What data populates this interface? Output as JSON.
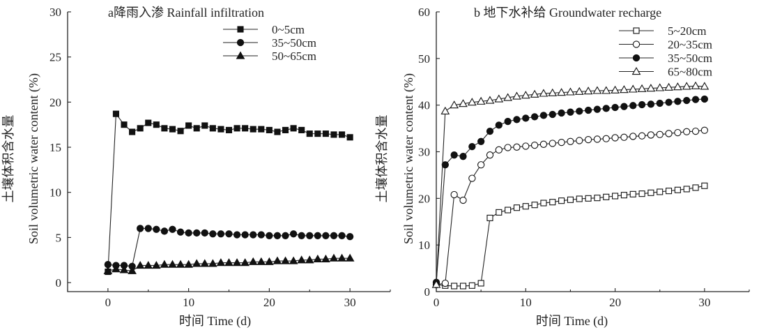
{
  "chart_data": [
    {
      "type": "line",
      "title": "a降雨入渗 Rainfall infiltration",
      "xlabel": "时间  Time (d)",
      "ylabel_cn": "土壤体积含水量",
      "ylabel": "Soil volumetric water content (%)",
      "xlim": [
        -5,
        35
      ],
      "ylim": [
        -1,
        30
      ],
      "xticks": [
        0,
        10,
        20,
        30
      ],
      "yticks": [
        0,
        5,
        10,
        15,
        20,
        25,
        30
      ],
      "legend_position": "top-right",
      "series": [
        {
          "name": "0~5cm",
          "marker": "square-filled",
          "x": [
            0,
            1,
            2,
            3,
            4,
            5,
            6,
            7,
            8,
            9,
            10,
            11,
            12,
            13,
            14,
            15,
            16,
            17,
            18,
            19,
            20,
            21,
            22,
            23,
            24,
            25,
            26,
            27,
            28,
            29,
            30
          ],
          "y": [
            1.2,
            18.7,
            17.5,
            16.7,
            17.1,
            17.7,
            17.5,
            17.1,
            17.0,
            16.8,
            17.4,
            17.1,
            17.4,
            17.1,
            17.0,
            16.9,
            17.1,
            17.1,
            17.0,
            17.0,
            16.9,
            16.7,
            16.9,
            17.1,
            16.9,
            16.5,
            16.5,
            16.5,
            16.4,
            16.4,
            16.1
          ]
        },
        {
          "name": "35~50cm",
          "marker": "circle-filled",
          "x": [
            0,
            1,
            2,
            3,
            4,
            5,
            6,
            7,
            8,
            9,
            10,
            11,
            12,
            13,
            14,
            15,
            16,
            17,
            18,
            19,
            20,
            21,
            22,
            23,
            24,
            25,
            26,
            27,
            28,
            29,
            30
          ],
          "y": [
            2.0,
            1.9,
            1.9,
            1.8,
            6.0,
            6.0,
            5.9,
            5.7,
            5.9,
            5.6,
            5.5,
            5.5,
            5.5,
            5.4,
            5.4,
            5.4,
            5.3,
            5.3,
            5.3,
            5.3,
            5.2,
            5.2,
            5.2,
            5.4,
            5.2,
            5.2,
            5.2,
            5.2,
            5.2,
            5.2,
            5.1
          ]
        },
        {
          "name": "50~65cm",
          "marker": "triangle-filled",
          "x": [
            0,
            1,
            2,
            3,
            4,
            5,
            6,
            7,
            8,
            9,
            10,
            11,
            12,
            13,
            14,
            15,
            16,
            17,
            18,
            19,
            20,
            21,
            22,
            23,
            24,
            25,
            26,
            27,
            28,
            29,
            30
          ],
          "y": [
            1.3,
            1.5,
            1.4,
            1.3,
            1.9,
            1.9,
            1.9,
            2.0,
            2.0,
            2.0,
            2.0,
            2.1,
            2.1,
            2.1,
            2.2,
            2.2,
            2.2,
            2.2,
            2.3,
            2.3,
            2.3,
            2.4,
            2.4,
            2.4,
            2.5,
            2.5,
            2.6,
            2.6,
            2.7,
            2.7,
            2.7
          ]
        }
      ]
    },
    {
      "type": "line",
      "title": "b  地下水补给 Groundwater recharge",
      "xlabel": "时间  Time (d)",
      "ylabel_cn": "土壤体积含水量",
      "ylabel": "Soil volumetric water content (%)",
      "xlim": [
        0,
        35
      ],
      "ylim": [
        0,
        60
      ],
      "xticks": [
        0,
        10,
        20,
        30
      ],
      "yticks": [
        0,
        10,
        20,
        30,
        40,
        50,
        60
      ],
      "legend_position": "top-right",
      "series": [
        {
          "name": "5~20cm",
          "marker": "square-open",
          "x": [
            0,
            1,
            2,
            3,
            4,
            5,
            6,
            7,
            8,
            9,
            10,
            11,
            12,
            13,
            14,
            15,
            16,
            17,
            18,
            19,
            20,
            21,
            22,
            23,
            24,
            25,
            26,
            27,
            28,
            29,
            30
          ],
          "y": [
            1.5,
            1.3,
            1.2,
            1.2,
            1.3,
            1.8,
            15.8,
            17.0,
            17.5,
            18.0,
            18.3,
            18.6,
            19.0,
            19.2,
            19.5,
            19.7,
            19.9,
            20.0,
            20.1,
            20.3,
            20.5,
            20.7,
            20.9,
            21.0,
            21.2,
            21.4,
            21.6,
            21.8,
            22.0,
            22.3,
            22.7
          ]
        },
        {
          "name": "20~35cm",
          "marker": "circle-open",
          "x": [
            0,
            1,
            2,
            3,
            4,
            5,
            6,
            7,
            8,
            9,
            10,
            11,
            12,
            13,
            14,
            15,
            16,
            17,
            18,
            19,
            20,
            21,
            22,
            23,
            24,
            25,
            26,
            27,
            28,
            29,
            30
          ],
          "y": [
            1.5,
            1.8,
            20.8,
            19.6,
            24.3,
            27.2,
            29.3,
            30.4,
            30.9,
            31.0,
            31.2,
            31.4,
            31.6,
            31.8,
            32.0,
            32.2,
            32.4,
            32.6,
            32.7,
            32.8,
            33.0,
            33.1,
            33.3,
            33.4,
            33.6,
            33.7,
            33.9,
            34.1,
            34.3,
            34.4,
            34.6
          ]
        },
        {
          "name": "35~50cm",
          "marker": "circle-filled",
          "x": [
            0,
            1,
            2,
            3,
            4,
            5,
            6,
            7,
            8,
            9,
            10,
            11,
            12,
            13,
            14,
            15,
            16,
            17,
            18,
            19,
            20,
            21,
            22,
            23,
            24,
            25,
            26,
            27,
            28,
            29,
            30
          ],
          "y": [
            2.0,
            27.2,
            29.3,
            29.0,
            31.1,
            32.2,
            34.4,
            35.7,
            36.5,
            36.9,
            37.2,
            37.5,
            37.8,
            38.0,
            38.3,
            38.5,
            38.7,
            38.9,
            39.1,
            39.3,
            39.5,
            39.7,
            39.9,
            40.1,
            40.2,
            40.4,
            40.6,
            40.8,
            41.0,
            41.2,
            41.3
          ]
        },
        {
          "name": "65~80cm",
          "marker": "triangle-open",
          "x": [
            0,
            1,
            2,
            3,
            4,
            5,
            6,
            7,
            8,
            9,
            10,
            11,
            12,
            13,
            14,
            15,
            16,
            17,
            18,
            19,
            20,
            21,
            22,
            23,
            24,
            25,
            26,
            27,
            28,
            29,
            30
          ],
          "y": [
            1.5,
            38.7,
            40.0,
            40.3,
            40.6,
            40.8,
            41.0,
            41.3,
            41.6,
            41.9,
            42.1,
            42.3,
            42.5,
            42.6,
            42.7,
            42.8,
            42.9,
            43.0,
            43.1,
            43.1,
            43.2,
            43.3,
            43.4,
            43.5,
            43.6,
            43.7,
            43.8,
            43.9,
            44.0,
            44.1,
            44.0
          ]
        }
      ]
    }
  ]
}
